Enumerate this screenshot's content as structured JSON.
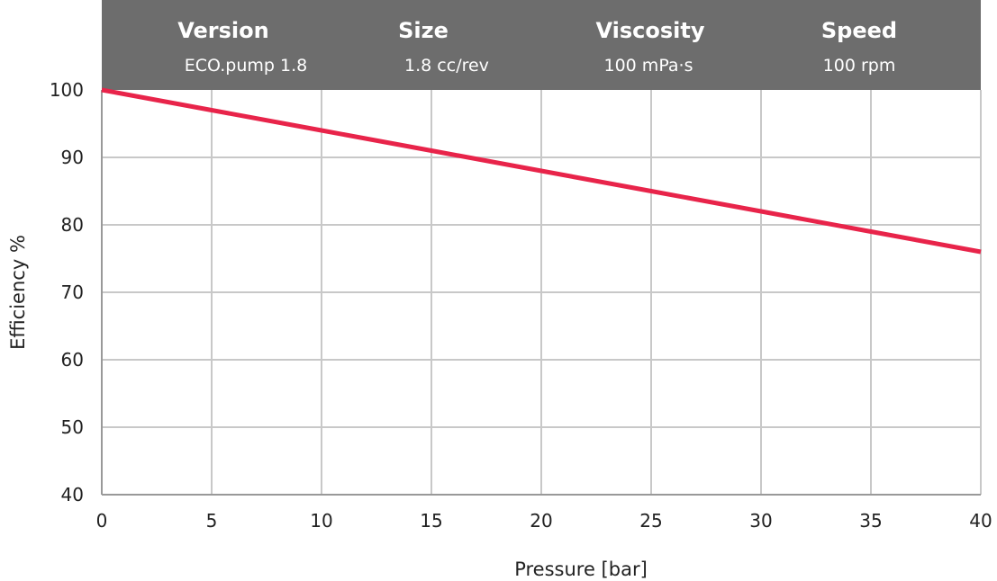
{
  "header": {
    "columns": [
      {
        "title": "Version",
        "value": "ECO.pump 1.8"
      },
      {
        "title": "Size",
        "value": "1.8 cc/rev"
      },
      {
        "title": "Viscosity",
        "value": "100 mPa·s"
      },
      {
        "title": "Speed",
        "value": "100 rpm"
      }
    ]
  },
  "colors": {
    "header_bg": "#6d6d6d",
    "grid": "#c8c8c8",
    "line": "#e8244a"
  },
  "chart_data": {
    "type": "line",
    "xlabel": "Pressure [bar]",
    "ylabel": "Efficiency %",
    "xlim": [
      0,
      40
    ],
    "ylim": [
      40,
      100
    ],
    "xticks": [
      0,
      5,
      10,
      15,
      20,
      25,
      30,
      35,
      40
    ],
    "yticks": [
      40,
      50,
      60,
      70,
      80,
      90,
      100
    ],
    "grid": true,
    "series": [
      {
        "x": [
          0,
          5,
          10,
          15,
          20,
          25,
          30,
          35,
          40
        ],
        "y": [
          100,
          97,
          94,
          91,
          88,
          85,
          82,
          79,
          76
        ]
      }
    ]
  }
}
